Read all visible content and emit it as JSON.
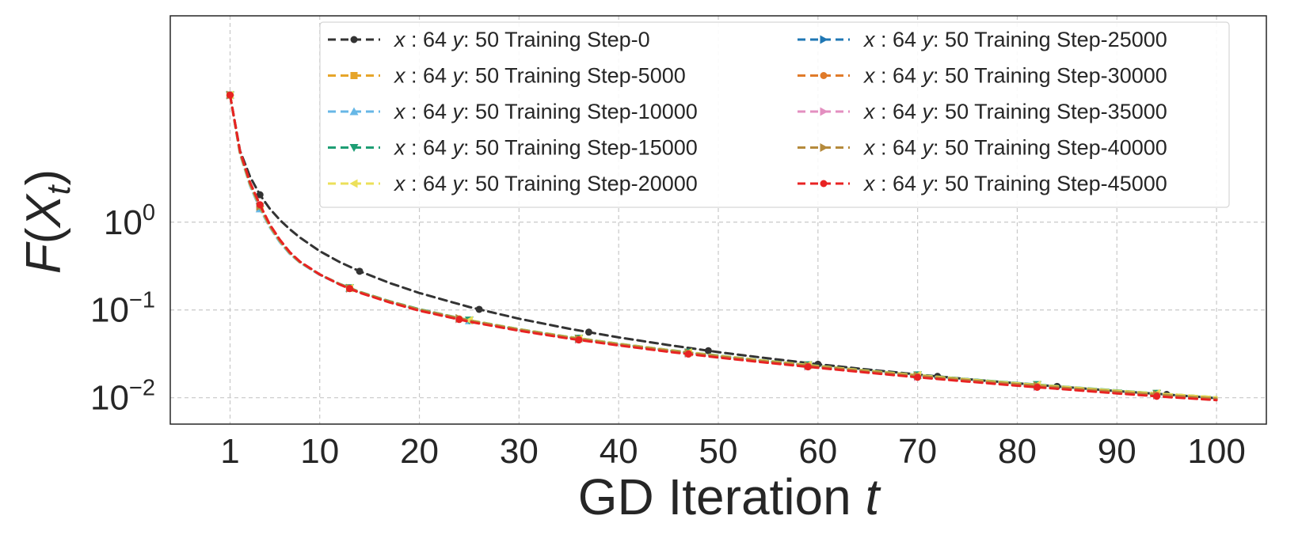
{
  "chart_data": {
    "type": "line",
    "title": "",
    "xlabel_prefix": "GD Iteration ",
    "xlabel_var": "t",
    "ylabel_func": "F",
    "ylabel_var": "X",
    "ylabel_sub": "t",
    "x_scale": "linear",
    "y_scale": "log",
    "xlim": [
      -5,
      105
    ],
    "ylim_log10": [
      -2.3,
      2.35
    ],
    "xticks": [
      1,
      10,
      20,
      30,
      40,
      50,
      60,
      70,
      80,
      90,
      100
    ],
    "xtick_labels": [
      "1",
      "10",
      "20",
      "30",
      "40",
      "50",
      "60",
      "70",
      "80",
      "90",
      "100"
    ],
    "yticks": [
      {
        "value": 1,
        "base": "10",
        "exp": "0"
      },
      {
        "value": 0.1,
        "base": "10",
        "exp": "−1"
      },
      {
        "value": 0.01,
        "base": "10",
        "exp": "−2"
      }
    ],
    "grid": true,
    "legend_position": "top-right",
    "x": [
      1,
      2,
      3,
      4,
      5,
      6,
      7,
      8,
      10,
      12,
      14,
      17,
      20,
      25,
      30,
      35,
      40,
      45,
      50,
      55,
      60,
      65,
      70,
      75,
      80,
      85,
      90,
      95,
      100
    ],
    "series": [
      {
        "name": "Training Step-0",
        "color": "#333333",
        "marker": "o",
        "marker_x": [
          1,
          4,
          14,
          26,
          37,
          49,
          60,
          72,
          84,
          95
        ],
        "values": [
          28.0,
          6.5,
          3.3,
          2.05,
          1.42,
          1.06,
          0.83,
          0.67,
          0.468,
          0.351,
          0.276,
          0.203,
          0.156,
          0.108,
          0.0795,
          0.0612,
          0.0487,
          0.0398,
          0.0331,
          0.0281,
          0.0241,
          0.021,
          0.0184,
          0.0163,
          0.0146,
          0.0132,
          0.0119,
          0.0109,
          0.0099
        ]
      },
      {
        "name": "Training Step-5000",
        "color": "#E6A52A",
        "marker": "s",
        "marker_x": [
          1,
          4,
          13,
          25,
          36,
          47,
          59,
          70,
          82,
          94
        ],
        "values": [
          28.0,
          6.0,
          2.65,
          1.45,
          0.88,
          0.6,
          0.44,
          0.35,
          0.253,
          0.197,
          0.16,
          0.125,
          0.101,
          0.076,
          0.06,
          0.049,
          0.041,
          0.0348,
          0.03,
          0.0261,
          0.023,
          0.0203,
          0.0181,
          0.0162,
          0.0146,
          0.0132,
          0.012,
          0.011,
          0.0101
        ]
      },
      {
        "name": "Training Step-10000",
        "color": "#67B7E6",
        "marker": "^",
        "marker_x": [
          1,
          4,
          13,
          25,
          36,
          47,
          59,
          70,
          82,
          94
        ],
        "values": [
          28.0,
          5.9,
          2.6,
          1.42,
          0.87,
          0.59,
          0.435,
          0.347,
          0.251,
          0.196,
          0.159,
          0.124,
          0.1,
          0.0755,
          0.0597,
          0.0487,
          0.0408,
          0.0346,
          0.0298,
          0.026,
          0.0229,
          0.0202,
          0.018,
          0.0161,
          0.0145,
          0.0131,
          0.0119,
          0.0109,
          0.01
        ]
      },
      {
        "name": "Training Step-15000",
        "color": "#1E9E74",
        "marker": "v",
        "marker_x": [
          1,
          4,
          13,
          25,
          36,
          47,
          59,
          70,
          82,
          94
        ],
        "values": [
          28.0,
          6.1,
          2.7,
          1.5,
          0.9,
          0.61,
          0.445,
          0.352,
          0.254,
          0.198,
          0.161,
          0.126,
          0.102,
          0.0765,
          0.0604,
          0.0493,
          0.0413,
          0.035,
          0.0302,
          0.0263,
          0.0231,
          0.0204,
          0.0182,
          0.0163,
          0.0147,
          0.0133,
          0.0121,
          0.011,
          0.0101
        ]
      },
      {
        "name": "Training Step-20000",
        "color": "#ECE05A",
        "marker": "<",
        "marker_x": [
          1,
          4,
          13,
          25,
          36,
          47,
          59,
          70,
          82,
          94
        ],
        "values": [
          28.0,
          6.0,
          2.68,
          1.48,
          0.89,
          0.605,
          0.442,
          0.35,
          0.253,
          0.197,
          0.16,
          0.125,
          0.101,
          0.0762,
          0.0602,
          0.0491,
          0.0411,
          0.0349,
          0.0301,
          0.0262,
          0.023,
          0.0203,
          0.0181,
          0.0162,
          0.0146,
          0.0132,
          0.012,
          0.011,
          0.0101
        ]
      },
      {
        "name": "Training Step-25000",
        "color": "#1F77B4",
        "marker": ">",
        "marker_x": [
          1,
          4,
          13,
          24,
          36,
          47,
          59,
          70,
          82,
          94
        ],
        "values": [
          28.0,
          6.2,
          2.75,
          1.52,
          0.91,
          0.615,
          0.447,
          0.352,
          0.253,
          0.196,
          0.159,
          0.124,
          0.1,
          0.0752,
          0.0593,
          0.0483,
          0.0404,
          0.0342,
          0.0295,
          0.0256,
          0.0225,
          0.0198,
          0.0176,
          0.0158,
          0.0142,
          0.0128,
          0.0116,
          0.0106,
          0.0097
        ]
      },
      {
        "name": "Training Step-30000",
        "color": "#E07B2A",
        "marker": "o",
        "marker_x": [
          1,
          4,
          13,
          24,
          36,
          47,
          59,
          70,
          82,
          94
        ],
        "values": [
          28.0,
          6.3,
          2.8,
          1.55,
          0.92,
          0.62,
          0.45,
          0.354,
          0.254,
          0.196,
          0.159,
          0.124,
          0.0998,
          0.0748,
          0.059,
          0.048,
          0.0401,
          0.034,
          0.0293,
          0.0254,
          0.0223,
          0.0196,
          0.0174,
          0.0156,
          0.014,
          0.0126,
          0.0115,
          0.0105,
          0.0096
        ]
      },
      {
        "name": "Training Step-35000",
        "color": "#E38FC0",
        "marker": ">",
        "marker_x": [
          1,
          4,
          13,
          24,
          36,
          47,
          59,
          70,
          82,
          94
        ],
        "values": [
          28.0,
          6.3,
          2.82,
          1.56,
          0.93,
          0.625,
          0.452,
          0.355,
          0.254,
          0.196,
          0.158,
          0.123,
          0.0995,
          0.0745,
          0.0588,
          0.0478,
          0.0399,
          0.0338,
          0.0291,
          0.0253,
          0.0222,
          0.0195,
          0.0173,
          0.0155,
          0.0139,
          0.0125,
          0.0114,
          0.0104,
          0.0095
        ]
      },
      {
        "name": "Training Step-40000",
        "color": "#B58A3C",
        "marker": ">",
        "marker_x": [
          1,
          4,
          13,
          24,
          36,
          47,
          59,
          70,
          82,
          94
        ],
        "values": [
          28.0,
          6.2,
          2.74,
          1.51,
          0.905,
          0.612,
          0.446,
          0.352,
          0.254,
          0.197,
          0.16,
          0.125,
          0.101,
          0.0758,
          0.0598,
          0.0487,
          0.0407,
          0.0345,
          0.0297,
          0.0258,
          0.0227,
          0.02,
          0.0178,
          0.0159,
          0.0143,
          0.0129,
          0.0117,
          0.0107,
          0.0098
        ]
      },
      {
        "name": "Training Step-45000",
        "color": "#E82323",
        "marker": "o",
        "marker_x": [
          1,
          4,
          13,
          24,
          36,
          47,
          59,
          70,
          82,
          94
        ],
        "values": [
          28.0,
          6.4,
          2.85,
          1.58,
          0.94,
          0.63,
          0.455,
          0.356,
          0.254,
          0.195,
          0.157,
          0.122,
          0.098,
          0.0735,
          0.058,
          0.0472,
          0.0394,
          0.0334,
          0.0287,
          0.025,
          0.0219,
          0.0193,
          0.0171,
          0.0153,
          0.0137,
          0.0124,
          0.0112,
          0.0102,
          0.0094
        ]
      }
    ],
    "legend": {
      "x_var": "x",
      "x_value": "64",
      "y_var": "y",
      "y_value": "50",
      "separator": ":",
      "label_suffix_prefix": "Training Step-"
    }
  }
}
